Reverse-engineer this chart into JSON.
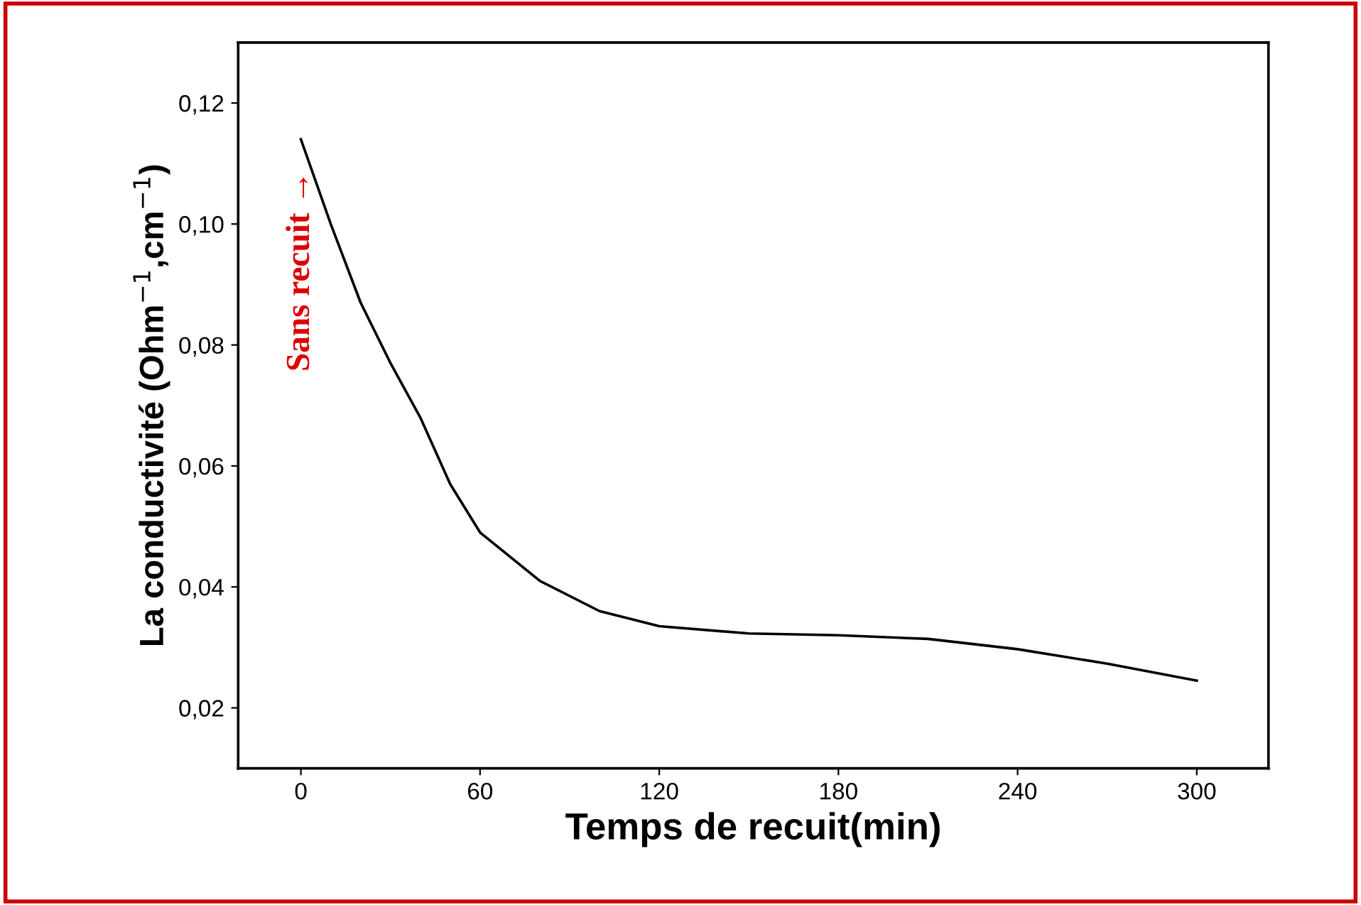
{
  "chart_data": {
    "type": "line",
    "xlabel": "Temps de recuit(min)",
    "ylabel": "La conductivité (Ohm$^{−1}$,cm$^{−1}$)",
    "xlim": [
      -21,
      324
    ],
    "ylim": [
      0.01,
      0.13
    ],
    "xticks": [
      0,
      60,
      120,
      180,
      240,
      300
    ],
    "yticks": [
      {
        "value": 0.02,
        "label": "0,02"
      },
      {
        "value": 0.04,
        "label": "0,04"
      },
      {
        "value": 0.06,
        "label": "0,06"
      },
      {
        "value": 0.08,
        "label": "0,08"
      },
      {
        "value": 0.1,
        "label": "0,10"
      },
      {
        "value": 0.12,
        "label": "0,12"
      }
    ],
    "grid": false,
    "legend": false,
    "marker": "none",
    "line_style": "solid",
    "series": [
      {
        "color": "#000000",
        "x": [
          0,
          10,
          20,
          30,
          40,
          50,
          60,
          80,
          100,
          120,
          150,
          180,
          210,
          240,
          270,
          300
        ],
        "values": [
          0.114,
          0.1,
          0.087,
          0.077,
          0.068,
          0.057,
          0.049,
          0.041,
          0.036,
          0.0335,
          0.0323,
          0.032,
          0.0314,
          0.0297,
          0.0273,
          0.0245
        ]
      }
    ],
    "annotations": [
      {
        "text": "Sans recuit →",
        "x": 0,
        "y": 0.114
      }
    ]
  }
}
